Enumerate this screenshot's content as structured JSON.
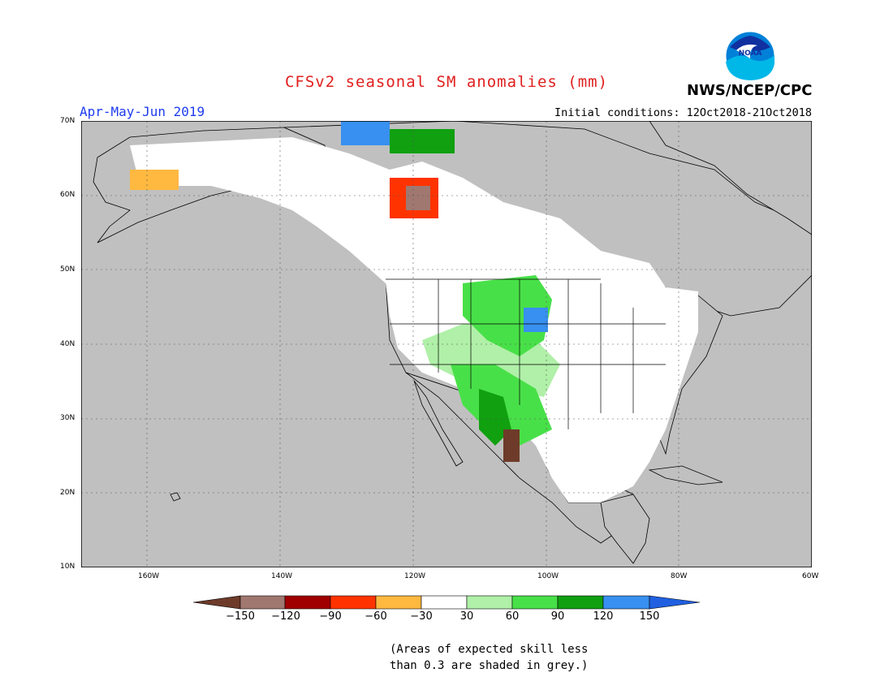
{
  "title": "CFSv2 seasonal SM anomalies (mm)",
  "season": "Apr-May-Jun 2019",
  "initial_conditions": "Initial conditions: 12Oct2018-21Oct2018",
  "agency": "NWS/NCEP/CPC",
  "logo_text": "NOAA",
  "lat_labels": [
    "70N",
    "60N",
    "50N",
    "40N",
    "30N",
    "20N",
    "10N"
  ],
  "lon_labels": [
    "160W",
    "140W",
    "120W",
    "100W",
    "80W",
    "60W"
  ],
  "colorbar": {
    "labels": [
      "−150",
      "−120",
      "−90",
      "−60",
      "−30",
      "30",
      "60",
      "90",
      "120",
      "150"
    ],
    "colors": [
      "#6e3b2a",
      "#a07870",
      "#a00000",
      "#ff3300",
      "#ffb840",
      "#ffffff",
      "#b0f0a8",
      "#48e048",
      "#10a010",
      "#3890f0",
      "#2060e0"
    ]
  },
  "note_lines": [
    "(Areas of expected skill less",
    "than 0.3 are shaded in grey.)"
  ],
  "colors": {
    "land_grey": "#c0c0c0",
    "ocean_grey": "#c0c0c0",
    "title_red": "#e0201e",
    "season_blue": "#1e3cf0"
  }
}
